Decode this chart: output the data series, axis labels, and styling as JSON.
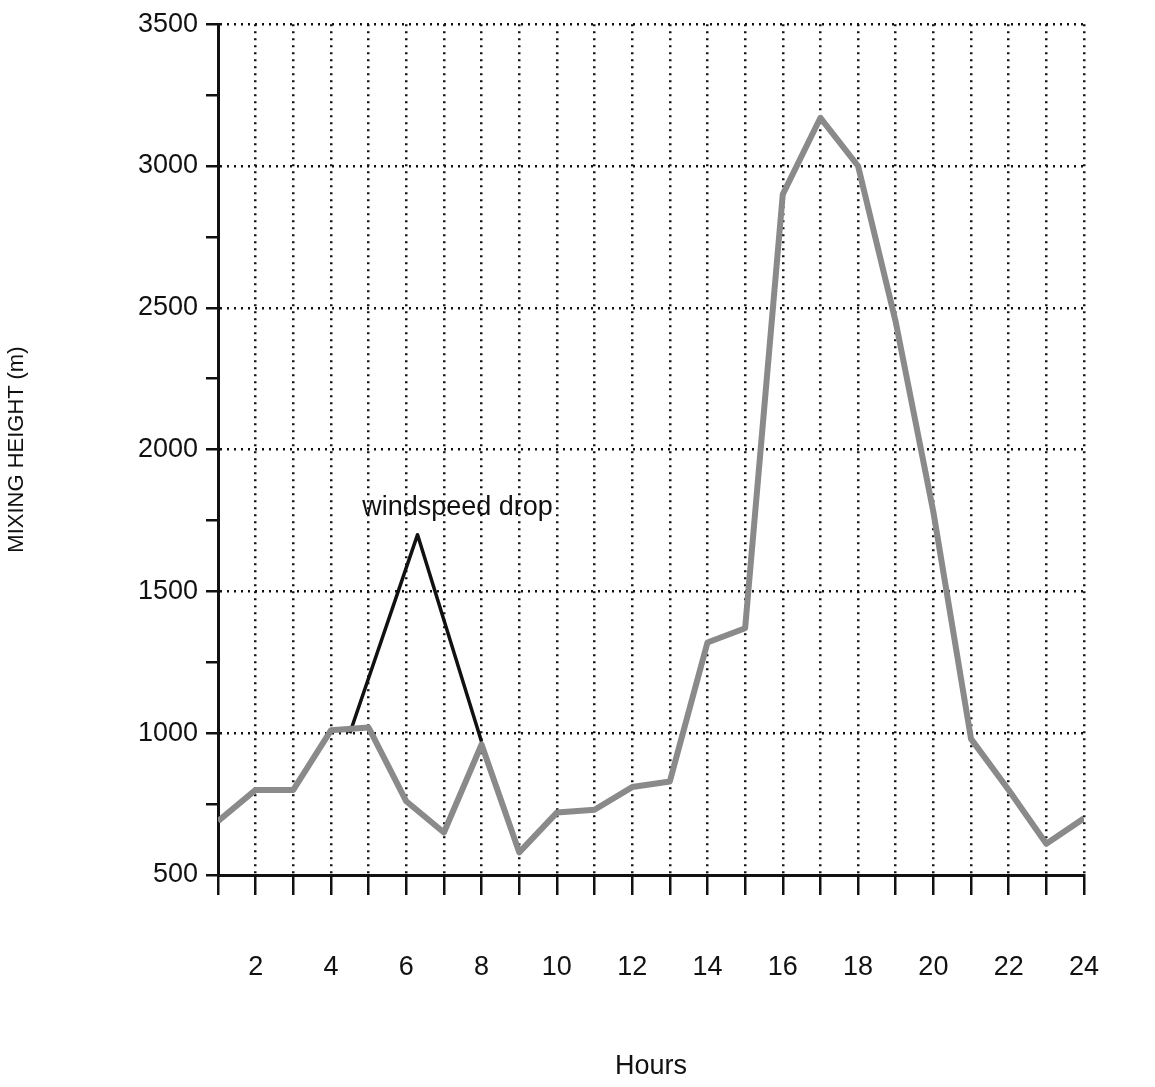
{
  "chart_data": {
    "type": "line",
    "xlabel": "Hours",
    "ylabel": "MIXING HEIGHT (m)",
    "x": [
      1,
      2,
      3,
      4,
      5,
      6,
      7,
      8,
      9,
      10,
      11,
      12,
      13,
      14,
      15,
      16,
      17,
      18,
      19,
      20,
      21,
      22,
      23,
      24
    ],
    "series": [
      {
        "color": "#8a8a8a",
        "values": [
          690,
          800,
          800,
          1010,
          1020,
          760,
          650,
          960,
          580,
          720,
          730,
          810,
          830,
          1320,
          1370,
          2900,
          3170,
          3000,
          2450,
          1780,
          980,
          800,
          610,
          700
        ]
      },
      {
        "color": "#111111",
        "x": [
          4.5,
          6.3,
          8
        ],
        "values": [
          1000,
          1700,
          970
        ]
      }
    ],
    "annotations": [
      {
        "text": "windspeed drop",
        "x": 6.3,
        "y": 1700
      }
    ],
    "xlim": [
      1,
      24
    ],
    "xticks": [
      {
        "value": 1,
        "label": null
      },
      2,
      {
        "value": 3,
        "label": null
      },
      4,
      {
        "value": 5,
        "label": null
      },
      6,
      {
        "value": 7,
        "label": null
      },
      8,
      {
        "value": 9,
        "label": null
      },
      10,
      {
        "value": 11,
        "label": null
      },
      12,
      {
        "value": 13,
        "label": null
      },
      14,
      {
        "value": 15,
        "label": null
      },
      16,
      {
        "value": 17,
        "label": null
      },
      18,
      {
        "value": 19,
        "label": null
      },
      20,
      {
        "value": 21,
        "label": null
      },
      22,
      {
        "value": 23,
        "label": null
      },
      24
    ],
    "ylim": [
      500,
      3500
    ],
    "yticks": [
      500,
      {
        "value": 750,
        "label": null
      },
      1000,
      {
        "value": 1250,
        "label": null
      },
      1500,
      {
        "value": 1750,
        "label": null
      },
      2000,
      {
        "value": 2250,
        "label": null
      },
      2500,
      {
        "value": 2750,
        "label": null
      },
      3000,
      {
        "value": 3250,
        "label": null
      },
      3500
    ],
    "grid": true,
    "legend": false,
    "marker": "none",
    "line_style": "solid"
  }
}
